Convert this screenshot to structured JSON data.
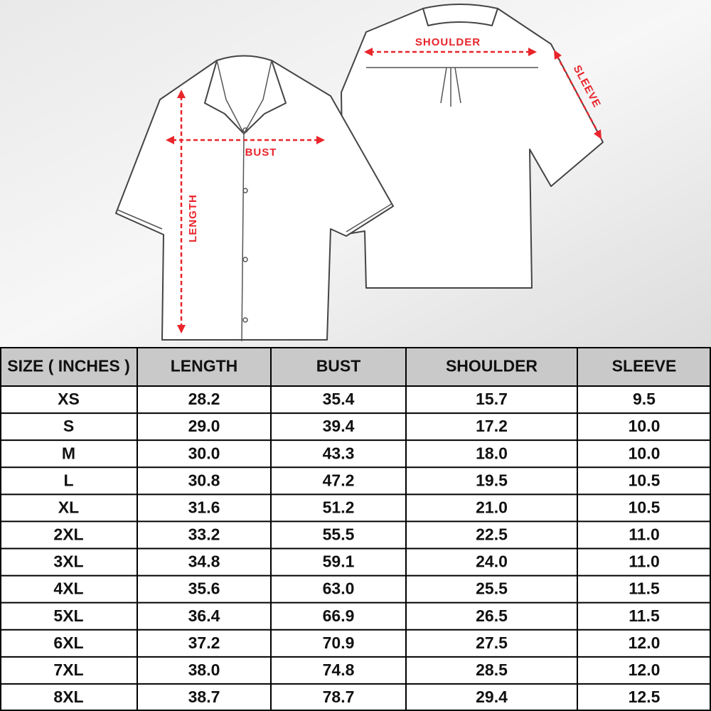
{
  "diagram": {
    "shoulder": "SHOULDER",
    "sleeve": "SLEEVE",
    "bust": "BUST",
    "length": "LENGTH"
  },
  "table": {
    "headers": [
      "SIZE ( INCHES )",
      "LENGTH",
      "BUST",
      "SHOULDER",
      "SLEEVE"
    ],
    "rows": [
      [
        "XS",
        "28.2",
        "35.4",
        "15.7",
        "9.5"
      ],
      [
        "S",
        "29.0",
        "39.4",
        "17.2",
        "10.0"
      ],
      [
        "M",
        "30.0",
        "43.3",
        "18.0",
        "10.0"
      ],
      [
        "L",
        "30.8",
        "47.2",
        "19.5",
        "10.5"
      ],
      [
        "XL",
        "31.6",
        "51.2",
        "21.0",
        "10.5"
      ],
      [
        "2XL",
        "33.2",
        "55.5",
        "22.5",
        "11.0"
      ],
      [
        "3XL",
        "34.8",
        "59.1",
        "24.0",
        "11.0"
      ],
      [
        "4XL",
        "35.6",
        "63.0",
        "25.5",
        "11.5"
      ],
      [
        "5XL",
        "36.4",
        "66.9",
        "26.5",
        "11.5"
      ],
      [
        "6XL",
        "37.2",
        "70.9",
        "27.5",
        "12.0"
      ],
      [
        "7XL",
        "38.0",
        "74.8",
        "28.5",
        "12.0"
      ],
      [
        "8XL",
        "38.7",
        "78.7",
        "29.4",
        "12.5"
      ]
    ]
  }
}
